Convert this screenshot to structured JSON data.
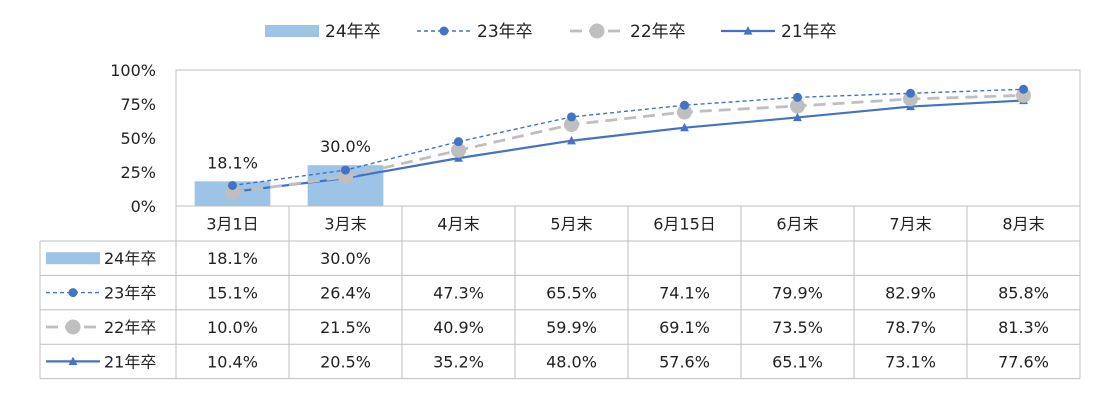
{
  "chart_data": {
    "type": "bar+line",
    "categories": [
      "3月1日",
      "3月末",
      "4月末",
      "5月末",
      "6月15日",
      "6月末",
      "7月末",
      "8月末"
    ],
    "series": [
      {
        "name": "24年卒",
        "kind": "bar",
        "color": "#9dc3e6",
        "values": [
          18.1,
          30.0,
          null,
          null,
          null,
          null,
          null,
          null
        ],
        "labels": [
          "18.1%",
          "30.0%",
          "",
          "",
          "",
          "",
          "",
          ""
        ]
      },
      {
        "name": "23年卒",
        "kind": "line",
        "style": "dotted",
        "marker": "circle",
        "color": "#4472c4",
        "values": [
          15.1,
          26.4,
          47.3,
          65.5,
          74.1,
          79.9,
          82.9,
          85.8
        ],
        "labels": [
          "15.1%",
          "26.4%",
          "47.3%",
          "65.5%",
          "74.1%",
          "79.9%",
          "82.9%",
          "85.8%"
        ]
      },
      {
        "name": "22年卒",
        "kind": "line",
        "style": "dashed",
        "marker": "circle-large",
        "color": "#bfbfbf",
        "values": [
          10.0,
          21.5,
          40.9,
          59.9,
          69.1,
          73.5,
          78.7,
          81.3
        ],
        "labels": [
          "10.0%",
          "21.5%",
          "40.9%",
          "59.9%",
          "69.1%",
          "73.5%",
          "78.7%",
          "81.3%"
        ]
      },
      {
        "name": "21年卒",
        "kind": "line",
        "style": "solid",
        "marker": "triangle",
        "color": "#4472c4",
        "values": [
          10.4,
          20.5,
          35.2,
          48.0,
          57.6,
          65.1,
          73.1,
          77.6
        ],
        "labels": [
          "10.4%",
          "20.5%",
          "35.2%",
          "48.0%",
          "57.6%",
          "65.1%",
          "73.1%",
          "77.6%"
        ]
      }
    ],
    "y_ticks": [
      "100%",
      "75%",
      "50%",
      "25%",
      "0%"
    ],
    "ylim": [
      0,
      100
    ],
    "legend": "top",
    "data_table": true,
    "grid": false
  }
}
